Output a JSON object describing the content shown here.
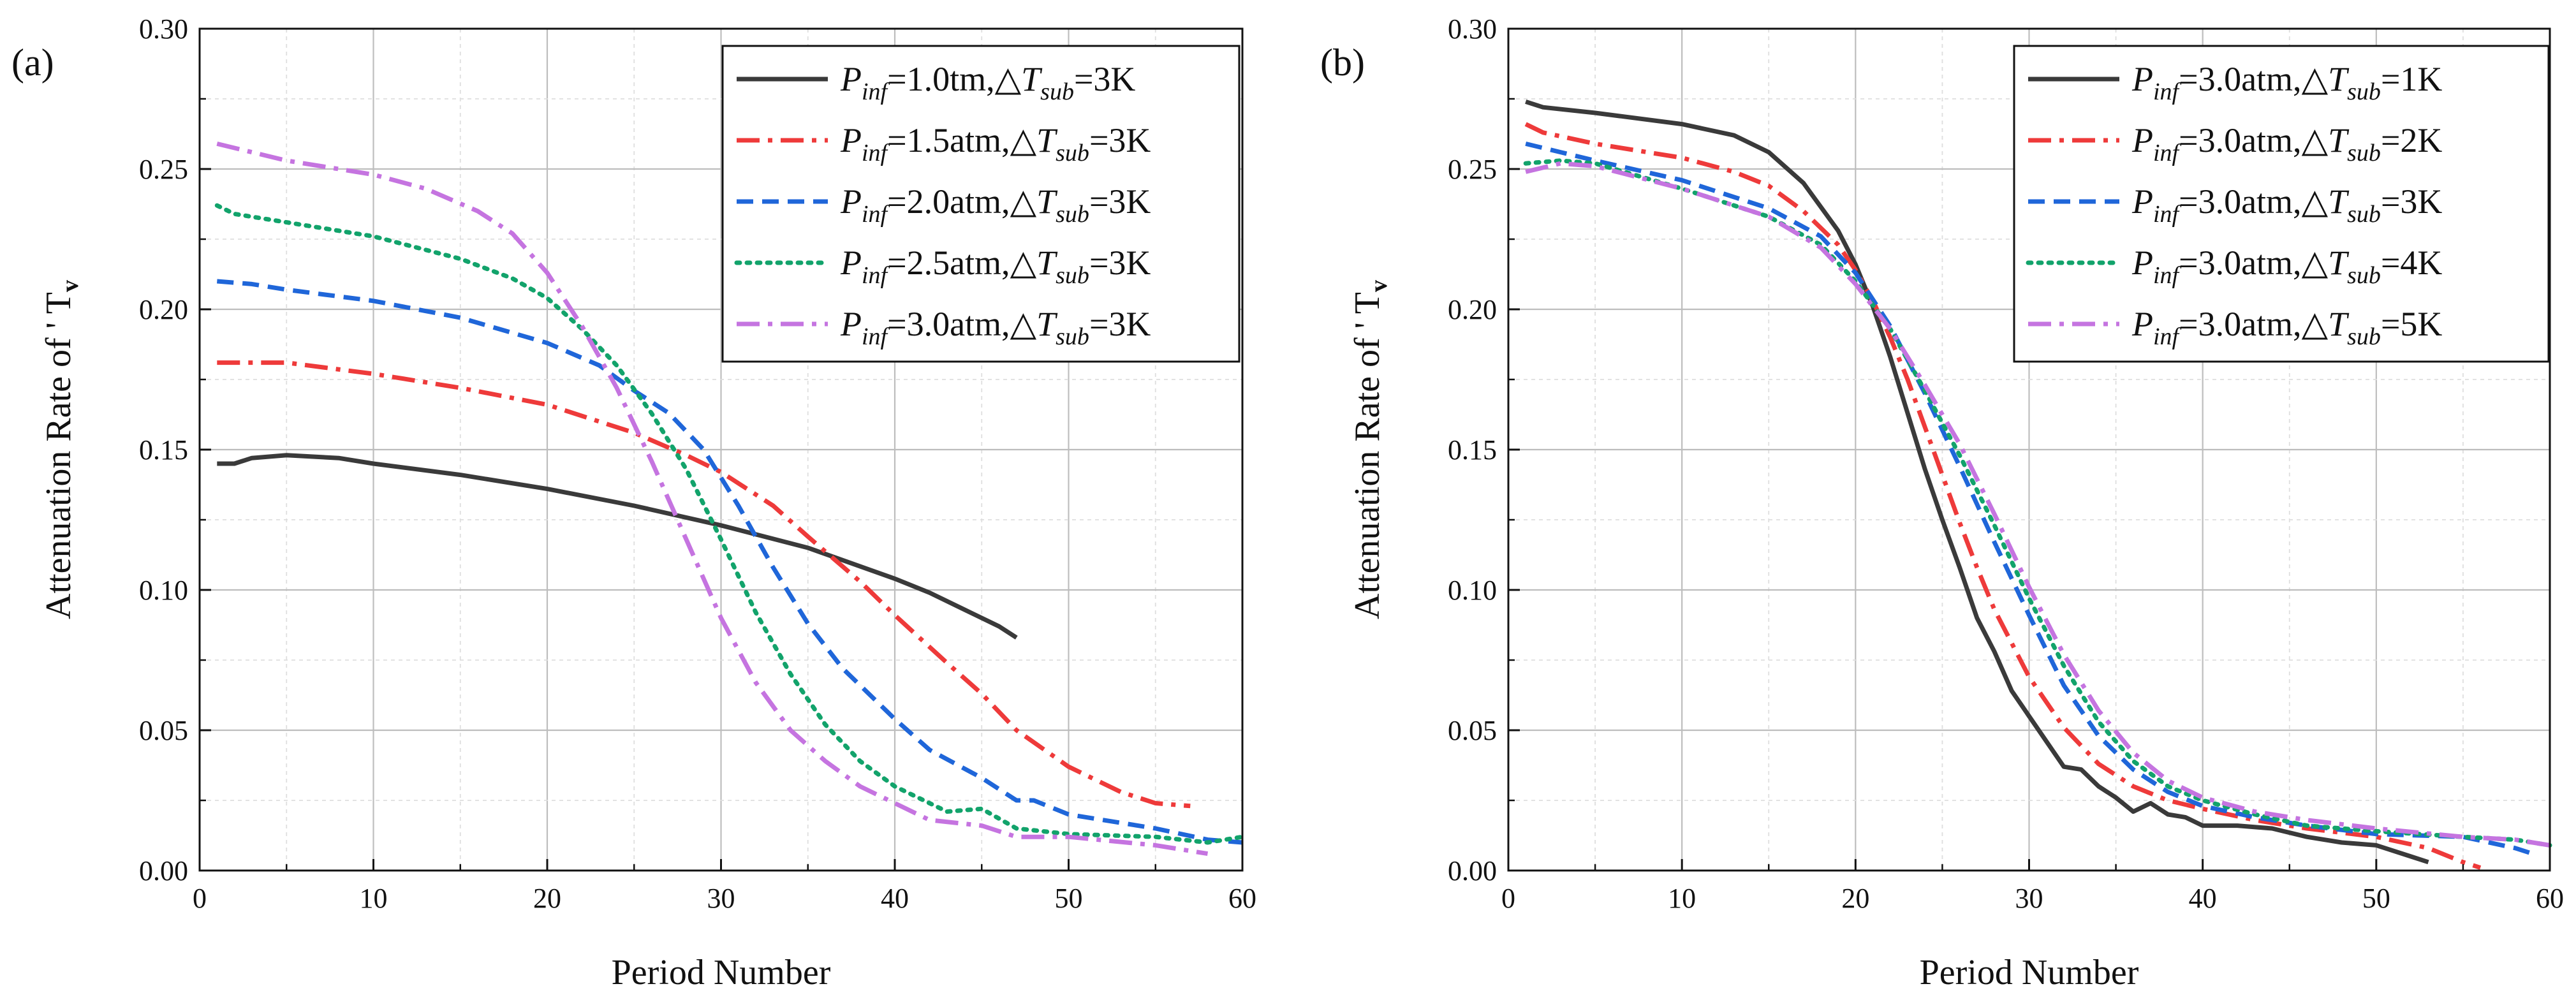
{
  "chart_data": [
    {
      "type": "line",
      "panel_label": "(a)",
      "xlabel": "Period Number",
      "ylabel": "Attenuation Rate of ' T",
      "ylabel_sub": "v",
      "xlim": [
        0,
        60
      ],
      "ylim": [
        0,
        0.3
      ],
      "xticks": [
        "0",
        "10",
        "20",
        "30",
        "40",
        "50",
        "60"
      ],
      "yticks": [
        "0.00",
        "0.05",
        "0.10",
        "0.15",
        "0.20",
        "0.25",
        "0.30"
      ],
      "grid": true,
      "legend_position": "top-right",
      "series": [
        {
          "name": "P_inf=1.0tm,△T_sub=3K",
          "legend_p": "1.0tm",
          "legend_t": "3K",
          "color": "#3a3a3a",
          "dash": "solid",
          "x": [
            1,
            2,
            3,
            5,
            8,
            10,
            15,
            20,
            25,
            30,
            35,
            40,
            42,
            44,
            46,
            47
          ],
          "y": [
            0.145,
            0.145,
            0.147,
            0.148,
            0.147,
            0.145,
            0.141,
            0.136,
            0.13,
            0.123,
            0.115,
            0.104,
            0.099,
            0.093,
            0.087,
            0.083
          ]
        },
        {
          "name": "P_inf=1.5atm,△T_sub=3K",
          "legend_p": "1.5atm",
          "legend_t": "3K",
          "color": "#ee3a3a",
          "dash": "dashdot",
          "x": [
            1,
            3,
            5,
            10,
            15,
            20,
            25,
            28,
            30,
            33,
            35,
            38,
            40,
            43,
            45,
            47,
            50,
            53,
            55,
            57
          ],
          "y": [
            0.181,
            0.181,
            0.181,
            0.177,
            0.172,
            0.166,
            0.156,
            0.148,
            0.142,
            0.13,
            0.119,
            0.103,
            0.091,
            0.074,
            0.063,
            0.05,
            0.037,
            0.028,
            0.024,
            0.023
          ]
        },
        {
          "name": "P_inf=2.0atm,△T_sub=3K",
          "legend_p": "2.0atm",
          "legend_t": "3K",
          "color": "#1f66d9",
          "dash": "dash",
          "x": [
            1,
            3,
            5,
            10,
            15,
            20,
            23,
            25,
            27,
            29,
            31,
            33,
            35,
            37,
            40,
            42,
            45,
            47,
            48,
            50,
            53,
            55,
            58,
            60
          ],
          "y": [
            0.21,
            0.209,
            0.207,
            0.203,
            0.197,
            0.188,
            0.18,
            0.171,
            0.163,
            0.15,
            0.13,
            0.108,
            0.088,
            0.072,
            0.054,
            0.043,
            0.033,
            0.025,
            0.025,
            0.02,
            0.017,
            0.015,
            0.011,
            0.01
          ]
        },
        {
          "name": "P_inf=2.5atm,△T_sub=3K",
          "legend_p": "2.5atm",
          "legend_t": "3K",
          "color": "#12a36b",
          "dash": "dot",
          "x": [
            1,
            2,
            5,
            10,
            15,
            18,
            20,
            22,
            24,
            26,
            28,
            30,
            32,
            34,
            36,
            38,
            40,
            43,
            45,
            47,
            50,
            55,
            58,
            60
          ],
          "y": [
            0.237,
            0.234,
            0.231,
            0.226,
            0.218,
            0.211,
            0.204,
            0.193,
            0.18,
            0.163,
            0.143,
            0.118,
            0.092,
            0.07,
            0.052,
            0.039,
            0.03,
            0.021,
            0.022,
            0.015,
            0.013,
            0.012,
            0.01,
            0.012
          ]
        },
        {
          "name": "P_inf=3.0atm,△T_sub=3K",
          "legend_p": "3.0atm",
          "legend_t": "3K",
          "color": "#c574e0",
          "dash": "dashdot",
          "x": [
            1,
            3,
            5,
            8,
            10,
            13,
            16,
            18,
            20,
            22,
            24,
            26,
            28,
            30,
            32,
            34,
            36,
            38,
            40,
            42,
            45,
            47,
            50,
            55,
            58
          ],
          "y": [
            0.259,
            0.256,
            0.253,
            0.25,
            0.248,
            0.243,
            0.235,
            0.227,
            0.213,
            0.194,
            0.172,
            0.146,
            0.118,
            0.09,
            0.067,
            0.05,
            0.039,
            0.03,
            0.024,
            0.018,
            0.016,
            0.012,
            0.012,
            0.009,
            0.006
          ]
        }
      ]
    },
    {
      "type": "line",
      "panel_label": "(b)",
      "xlabel": "Period Number",
      "ylabel": "Attenuation Rate of ' T",
      "ylabel_sub": "v",
      "xlim": [
        0,
        60
      ],
      "ylim": [
        0,
        0.3
      ],
      "xticks": [
        "0",
        "10",
        "20",
        "30",
        "40",
        "50",
        "60"
      ],
      "yticks": [
        "0.00",
        "0.05",
        "0.10",
        "0.15",
        "0.20",
        "0.25",
        "0.30"
      ],
      "grid": true,
      "legend_position": "top-right",
      "series": [
        {
          "name": "P_inf=3.0atm,△T_sub=1K",
          "legend_p": "3.0atm",
          "legend_t": "1K",
          "color": "#3a3a3a",
          "dash": "solid",
          "x": [
            1,
            2,
            5,
            10,
            13,
            15,
            17,
            19,
            20,
            21,
            22,
            23,
            24,
            25,
            26,
            27,
            28,
            29,
            30,
            31,
            32,
            33,
            34,
            35,
            36,
            37,
            38,
            39,
            40,
            42,
            44,
            46,
            48,
            50,
            52,
            53
          ],
          "y": [
            0.274,
            0.272,
            0.27,
            0.266,
            0.262,
            0.256,
            0.245,
            0.228,
            0.216,
            0.201,
            0.183,
            0.163,
            0.143,
            0.125,
            0.108,
            0.09,
            0.078,
            0.064,
            0.055,
            0.046,
            0.037,
            0.036,
            0.03,
            0.026,
            0.021,
            0.024,
            0.02,
            0.019,
            0.016,
            0.016,
            0.015,
            0.012,
            0.01,
            0.009,
            0.005,
            0.003
          ]
        },
        {
          "name": "P_inf=3.0atm,△T_sub=2K",
          "legend_p": "3.0atm",
          "legend_t": "2K",
          "color": "#ee3a3a",
          "dash": "dashdot",
          "x": [
            1,
            2,
            5,
            10,
            13,
            15,
            17,
            19,
            20,
            21,
            22,
            23,
            24,
            25,
            26,
            27,
            28,
            29,
            30,
            32,
            34,
            36,
            38,
            40,
            43,
            46,
            50,
            53,
            55,
            56
          ],
          "y": [
            0.266,
            0.263,
            0.259,
            0.254,
            0.249,
            0.244,
            0.235,
            0.223,
            0.214,
            0.203,
            0.19,
            0.175,
            0.158,
            0.141,
            0.124,
            0.108,
            0.093,
            0.081,
            0.069,
            0.051,
            0.038,
            0.03,
            0.025,
            0.022,
            0.018,
            0.015,
            0.012,
            0.008,
            0.003,
            0.001
          ]
        },
        {
          "name": "P_inf=3.0atm,△T_sub=3K",
          "legend_p": "3.0atm",
          "legend_t": "3K",
          "color": "#1f66d9",
          "dash": "dash",
          "x": [
            1,
            3,
            5,
            10,
            15,
            18,
            20,
            22,
            24,
            26,
            28,
            30,
            32,
            34,
            36,
            38,
            40,
            43,
            46,
            50,
            55,
            58,
            59
          ],
          "y": [
            0.259,
            0.256,
            0.253,
            0.246,
            0.236,
            0.226,
            0.213,
            0.194,
            0.17,
            0.144,
            0.117,
            0.091,
            0.066,
            0.048,
            0.036,
            0.028,
            0.023,
            0.019,
            0.016,
            0.013,
            0.012,
            0.008,
            0.006
          ]
        },
        {
          "name": "P_inf=3.0atm,△T_sub=4K",
          "legend_p": "3.0atm",
          "legend_t": "4K",
          "color": "#12a36b",
          "dash": "dot",
          "x": [
            1,
            3,
            5,
            10,
            15,
            18,
            20,
            22,
            24,
            26,
            28,
            30,
            32,
            34,
            36,
            38,
            40,
            43,
            46,
            50,
            55,
            58,
            60
          ],
          "y": [
            0.252,
            0.253,
            0.252,
            0.243,
            0.233,
            0.223,
            0.21,
            0.193,
            0.171,
            0.148,
            0.123,
            0.097,
            0.073,
            0.053,
            0.039,
            0.03,
            0.025,
            0.02,
            0.016,
            0.014,
            0.012,
            0.011,
            0.009
          ]
        },
        {
          "name": "P_inf=3.0atm,△T_sub=5K",
          "legend_p": "3.0atm",
          "legend_t": "5K",
          "color": "#c574e0",
          "dash": "dashdot",
          "x": [
            1,
            3,
            5,
            10,
            15,
            18,
            20,
            22,
            24,
            26,
            28,
            30,
            32,
            34,
            36,
            38,
            40,
            43,
            46,
            50,
            55,
            58,
            60
          ],
          "y": [
            0.249,
            0.252,
            0.251,
            0.243,
            0.233,
            0.222,
            0.209,
            0.193,
            0.173,
            0.152,
            0.127,
            0.101,
            0.077,
            0.057,
            0.042,
            0.032,
            0.026,
            0.021,
            0.018,
            0.015,
            0.012,
            0.011,
            0.009
          ]
        }
      ]
    }
  ]
}
